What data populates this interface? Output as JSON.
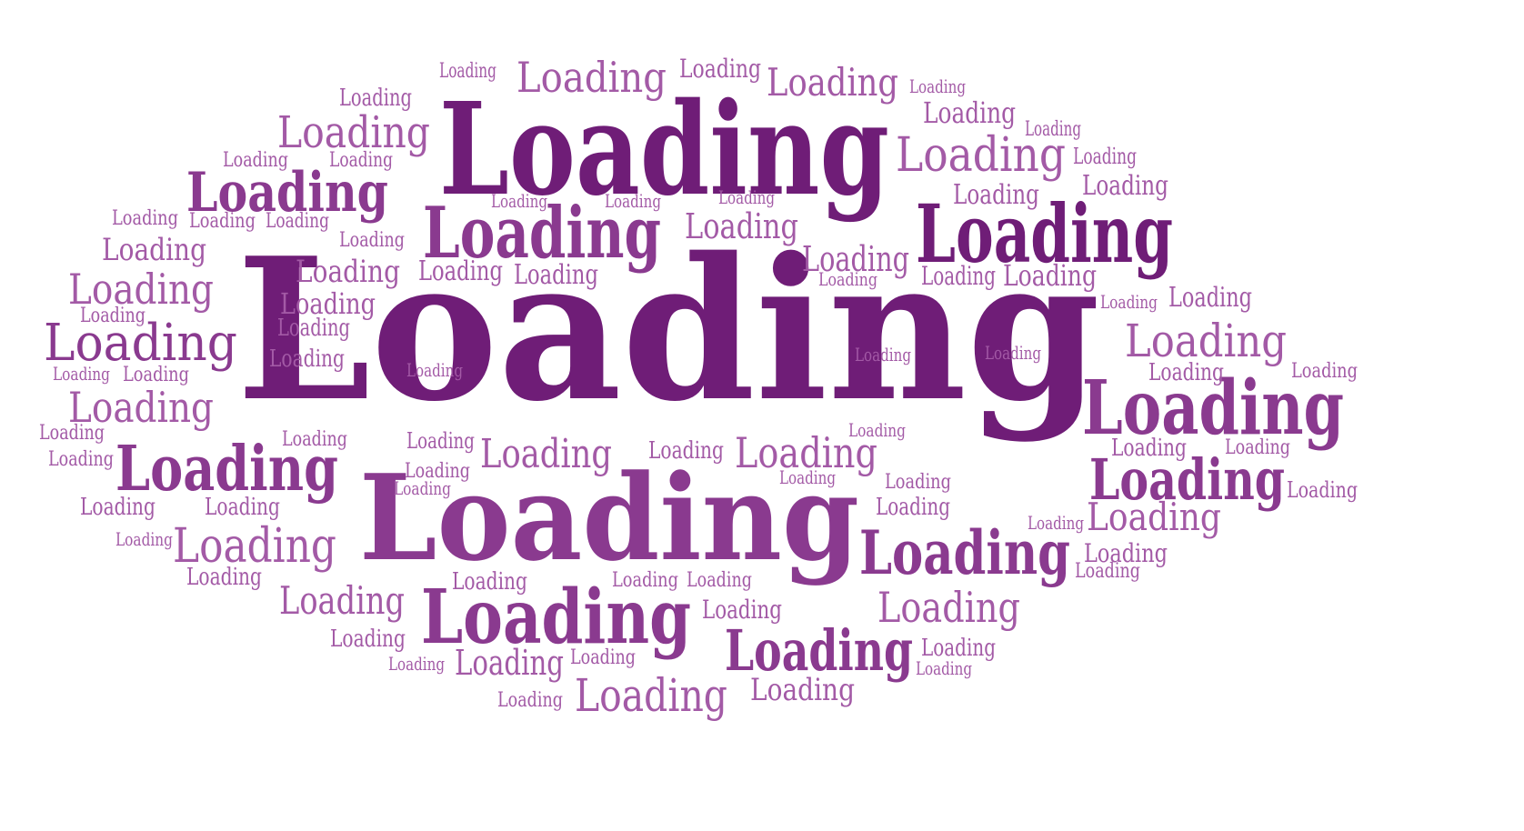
{
  "word": "Loading",
  "colors": {
    "dark": "#6f1d77",
    "mid": "#8a3a8f",
    "light": "#a35aa6",
    "background": "#ffffff"
  }
}
